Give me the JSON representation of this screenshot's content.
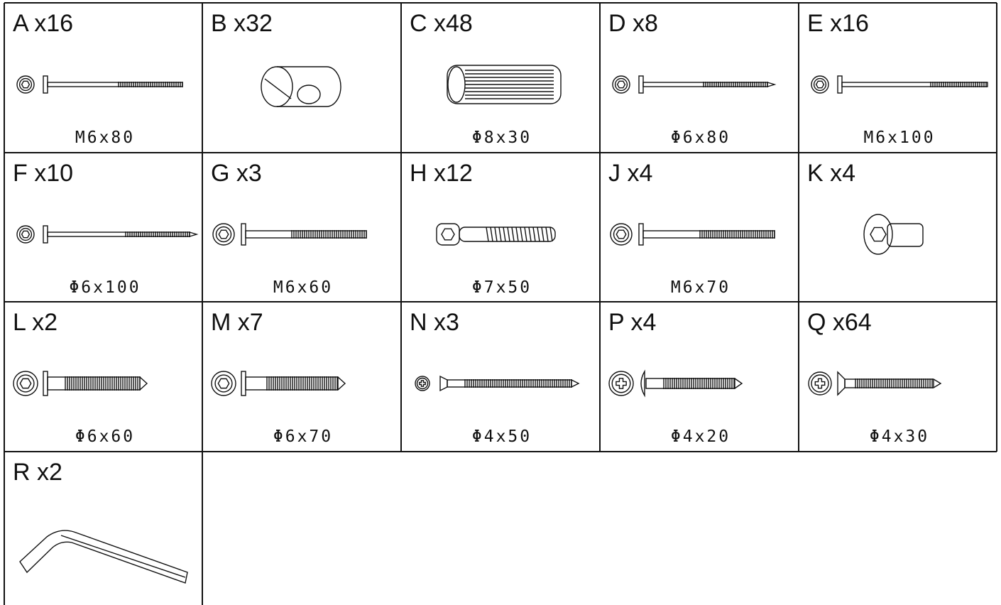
{
  "parts": [
    {
      "label": "A x16",
      "size": "M6x80"
    },
    {
      "label": "B x32"
    },
    {
      "label": "C x48",
      "size": "Φ8x30"
    },
    {
      "label": "D x8",
      "size": "Φ6x80"
    },
    {
      "label": "E x16",
      "size": "M6x100"
    },
    {
      "label": "F x10",
      "size": "Φ6x100"
    },
    {
      "label": "G x3",
      "size": "M6x60"
    },
    {
      "label": "H x12",
      "size": "Φ7x50"
    },
    {
      "label": "J x4",
      "size": "M6x70"
    },
    {
      "label": "K x4"
    },
    {
      "label": "L x2",
      "size": "Φ6x60"
    },
    {
      "label": "M x7",
      "size": "Φ6x70"
    },
    {
      "label": "N x3",
      "size": "Φ4x50"
    },
    {
      "label": "P x4",
      "size": "Φ4x20"
    },
    {
      "label": "Q x64",
      "size": "Φ4x30"
    },
    {
      "label": "R x2"
    }
  ]
}
